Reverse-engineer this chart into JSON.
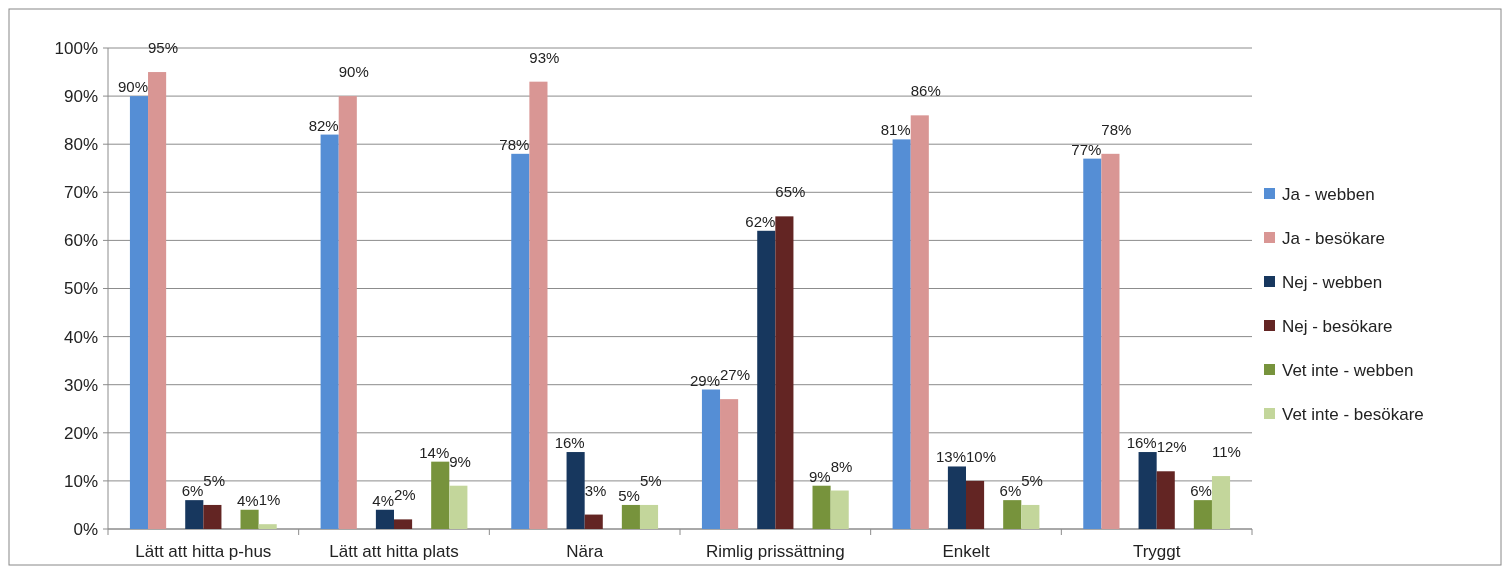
{
  "chart_data": {
    "type": "bar",
    "categories": [
      "Lätt att hitta p-hus",
      "Lätt att hitta plats",
      "Nära",
      "Rimlig prissättning",
      "Enkelt",
      "Tryggt"
    ],
    "series": [
      {
        "name": "Ja - webben",
        "color": "#558ed5",
        "values": [
          90,
          82,
          78,
          29,
          81,
          77
        ],
        "value_labels": [
          "90%",
          "82%",
          "78%",
          "29%",
          "81%",
          "77%"
        ]
      },
      {
        "name": "Ja - besökare",
        "color": "#d99694",
        "values": [
          95,
          90,
          93,
          27,
          86,
          78
        ],
        "value_labels": [
          "95%",
          "90%",
          "93%",
          "27%",
          "86%",
          "78%"
        ]
      },
      {
        "name": "Nej - webben",
        "color": "#17375e",
        "values": [
          6,
          4,
          16,
          62,
          13,
          16
        ],
        "value_labels": [
          "6%",
          "4%",
          "16%",
          "62%",
          "13%",
          "16%"
        ]
      },
      {
        "name": "Nej - besökare",
        "color": "#632523",
        "values": [
          5,
          2,
          3,
          65,
          10,
          12
        ],
        "value_labels": [
          "5%",
          "2%",
          "3%",
          "65%",
          "10%",
          "12%"
        ]
      },
      {
        "name": "Vet inte - webben",
        "color": "#77933c",
        "values": [
          4,
          14,
          5,
          9,
          6,
          6
        ],
        "value_labels": [
          "4%",
          "14%",
          "5%",
          "9%",
          "6%",
          "6%"
        ]
      },
      {
        "name": "Vet inte - besökare",
        "color": "#c3d69b",
        "values": [
          1,
          9,
          5,
          8,
          5,
          11
        ],
        "value_labels": [
          "1%",
          "9%",
          "5%",
          "8%",
          "5%",
          "11%"
        ]
      }
    ],
    "ylim": [
      0,
      100
    ],
    "yticks": [
      {
        "value": 0,
        "label": "0%"
      },
      {
        "value": 10,
        "label": "10%"
      },
      {
        "value": 20,
        "label": "20%"
      },
      {
        "value": 30,
        "label": "30%"
      },
      {
        "value": 40,
        "label": "40%"
      },
      {
        "value": 50,
        "label": "50%"
      },
      {
        "value": 60,
        "label": "60%"
      },
      {
        "value": 70,
        "label": "70%"
      },
      {
        "value": 80,
        "label": "80%"
      },
      {
        "value": 90,
        "label": "90%"
      },
      {
        "value": 100,
        "label": "100%"
      }
    ],
    "grid": "y",
    "legend": "right"
  }
}
